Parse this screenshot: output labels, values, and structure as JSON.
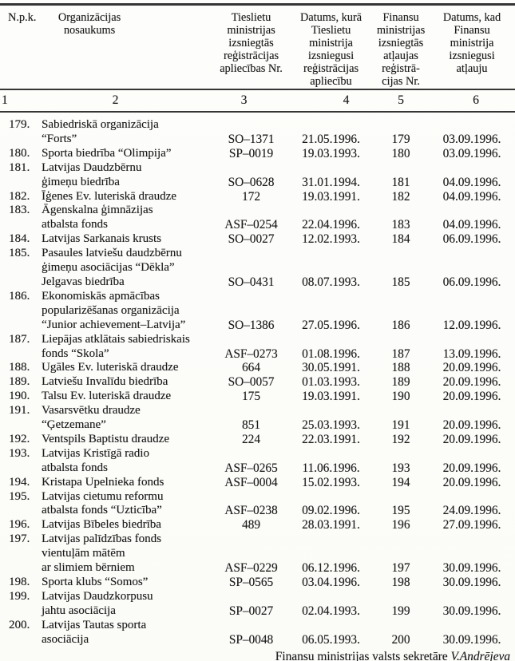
{
  "table": {
    "headers": [
      {
        "label": "N.p.k."
      },
      {
        "label": "Organizācijas\nnosaukums"
      },
      {
        "label": "Tieslietu\nministrijas\nizsniegtās\nreģistrācijas\napliecības Nr."
      },
      {
        "label": "Datums, kurā\nTieslietu\nministrija\nizsniegusi\nreģistrācijas\napliecību"
      },
      {
        "label": "Finansu\nministrijas\nizsniegtās\natļaujas\nreģistrā-\ncijas Nr."
      },
      {
        "label": "Datums, kad\nFinansu\nministrija\nizsniegusi\natļauju"
      }
    ],
    "column_numbers": [
      "1",
      "2",
      "3",
      "4",
      "5",
      "6"
    ],
    "rows": [
      {
        "npk": "179.",
        "name": "Sabiedriskā organizācija\n“Forts”",
        "justice_nr": "SO–1371",
        "justice_date": "21.05.1996.",
        "finance_nr": "179",
        "finance_date": "03.09.1996."
      },
      {
        "npk": "180.",
        "name": "Sporta biedrība “Olimpija”",
        "justice_nr": "SP–0019",
        "justice_date": "19.03.1993.",
        "finance_nr": "180",
        "finance_date": "03.09.1996."
      },
      {
        "npk": "181.",
        "name": "Latvijas Daudzbērnu\nģimeņu biedrība",
        "justice_nr": "SO–0628",
        "justice_date": "31.01.1994.",
        "finance_nr": "181",
        "finance_date": "04.09.1996."
      },
      {
        "npk": "182.",
        "name": "Īģenes Ev. luteriskā draudze",
        "justice_nr": "172",
        "justice_date": "19.03.1991.",
        "finance_nr": "182",
        "finance_date": "04.09.1996."
      },
      {
        "npk": "183.",
        "name": "Āgenskalna ģimnāzijas\natbalsta fonds",
        "justice_nr": "ASF–0254",
        "justice_date": "22.04.1996.",
        "finance_nr": "183",
        "finance_date": "04.09.1996."
      },
      {
        "npk": "184.",
        "name": "Latvijas Sarkanais krusts",
        "justice_nr": "SO–0027",
        "justice_date": "12.02.1993.",
        "finance_nr": "184",
        "finance_date": "06.09.1996."
      },
      {
        "npk": "185.",
        "name": "Pasaules latviešu daudzbērnu\nģimeņu asociācijas “Dēkla”\nJelgavas biedrība",
        "justice_nr": "SO–0431",
        "justice_date": "08.07.1993.",
        "finance_nr": "185",
        "finance_date": "06.09.1996."
      },
      {
        "npk": "186.",
        "name": "Ekonomiskās apmācības\npopularizēšanas organizācija\n“Junior achievement–Latvija”",
        "justice_nr": "SO–1386",
        "justice_date": "27.05.1996.",
        "finance_nr": "186",
        "finance_date": "12.09.1996."
      },
      {
        "npk": "187.",
        "name": "Liepājas atklātais sabiedriskais\nfonds “Skola”",
        "justice_nr": "ASF–0273",
        "justice_date": "01.08.1996.",
        "finance_nr": "187",
        "finance_date": "13.09.1996."
      },
      {
        "npk": "188.",
        "name": "Ugāles Ev. luteriskā draudze",
        "justice_nr": "664",
        "justice_date": "30.05.1991.",
        "finance_nr": "188",
        "finance_date": "20.09.1996."
      },
      {
        "npk": "189.",
        "name": "Latviešu Invalīdu biedrība",
        "justice_nr": "SO–0057",
        "justice_date": "01.03.1993.",
        "finance_nr": "189",
        "finance_date": "20.09.1996."
      },
      {
        "npk": "190.",
        "name": "Talsu Ev. luteriskā draudze",
        "justice_nr": "175",
        "justice_date": "19.03.1991.",
        "finance_nr": "190",
        "finance_date": "20.09.1996."
      },
      {
        "npk": "191.",
        "name": "Vasarsvētku draudze\n“Ģetzemane”",
        "justice_nr": "851",
        "justice_date": "25.03.1993.",
        "finance_nr": "191",
        "finance_date": "20.09.1996."
      },
      {
        "npk": "192.",
        "name": "Ventspils Baptistu draudze",
        "justice_nr": "224",
        "justice_date": "22.03.1991.",
        "finance_nr": "192",
        "finance_date": "20.09.1996."
      },
      {
        "npk": "193.",
        "name": "Latvijas Kristīgā radio\natbalsta fonds",
        "justice_nr": "ASF–0265",
        "justice_date": "11.06.1996.",
        "finance_nr": "193",
        "finance_date": "20.09.1996."
      },
      {
        "npk": "194.",
        "name": "Kristapa Upelnieka fonds",
        "justice_nr": "ASF–0004",
        "justice_date": "15.02.1993.",
        "finance_nr": "194",
        "finance_date": "20.09.1996."
      },
      {
        "npk": "195.",
        "name": "Latvijas cietumu reformu\natbalsta fonds “Uzticība”",
        "justice_nr": "ASF–0238",
        "justice_date": "09.02.1996.",
        "finance_nr": "195",
        "finance_date": "24.09.1996."
      },
      {
        "npk": "196.",
        "name": "Latvijas Bībeles biedrība",
        "justice_nr": "489",
        "justice_date": "28.03.1991.",
        "finance_nr": "196",
        "finance_date": "27.09.1996."
      },
      {
        "npk": "197.",
        "name": "Latvijas palīdzības fonds\nvientuļām mātēm\nar slimiem bērniem",
        "justice_nr": "ASF–0229",
        "justice_date": "06.12.1996.",
        "finance_nr": "197",
        "finance_date": "30.09.1996."
      },
      {
        "npk": "198.",
        "name": "Sporta klubs “Somos”",
        "justice_nr": "SP–0565",
        "justice_date": "03.04.1996.",
        "finance_nr": "198",
        "finance_date": "30.09.1996."
      },
      {
        "npk": "199.",
        "name": "Latvijas Daudzkorpusu\njahtu asociācija",
        "justice_nr": "SP–0027",
        "justice_date": "02.04.1993.",
        "finance_nr": "199",
        "finance_date": "30.09.1996."
      },
      {
        "npk": "200.",
        "name": "Latvijas Tautas sporta\nasociācija",
        "justice_nr": "SP–0048",
        "justice_date": "06.05.1993.",
        "finance_nr": "200",
        "finance_date": "30.09.1996."
      }
    ]
  },
  "footer": {
    "text": "Finansu ministrijas valsts sekretāre",
    "signature": "V.Andrējeva"
  }
}
